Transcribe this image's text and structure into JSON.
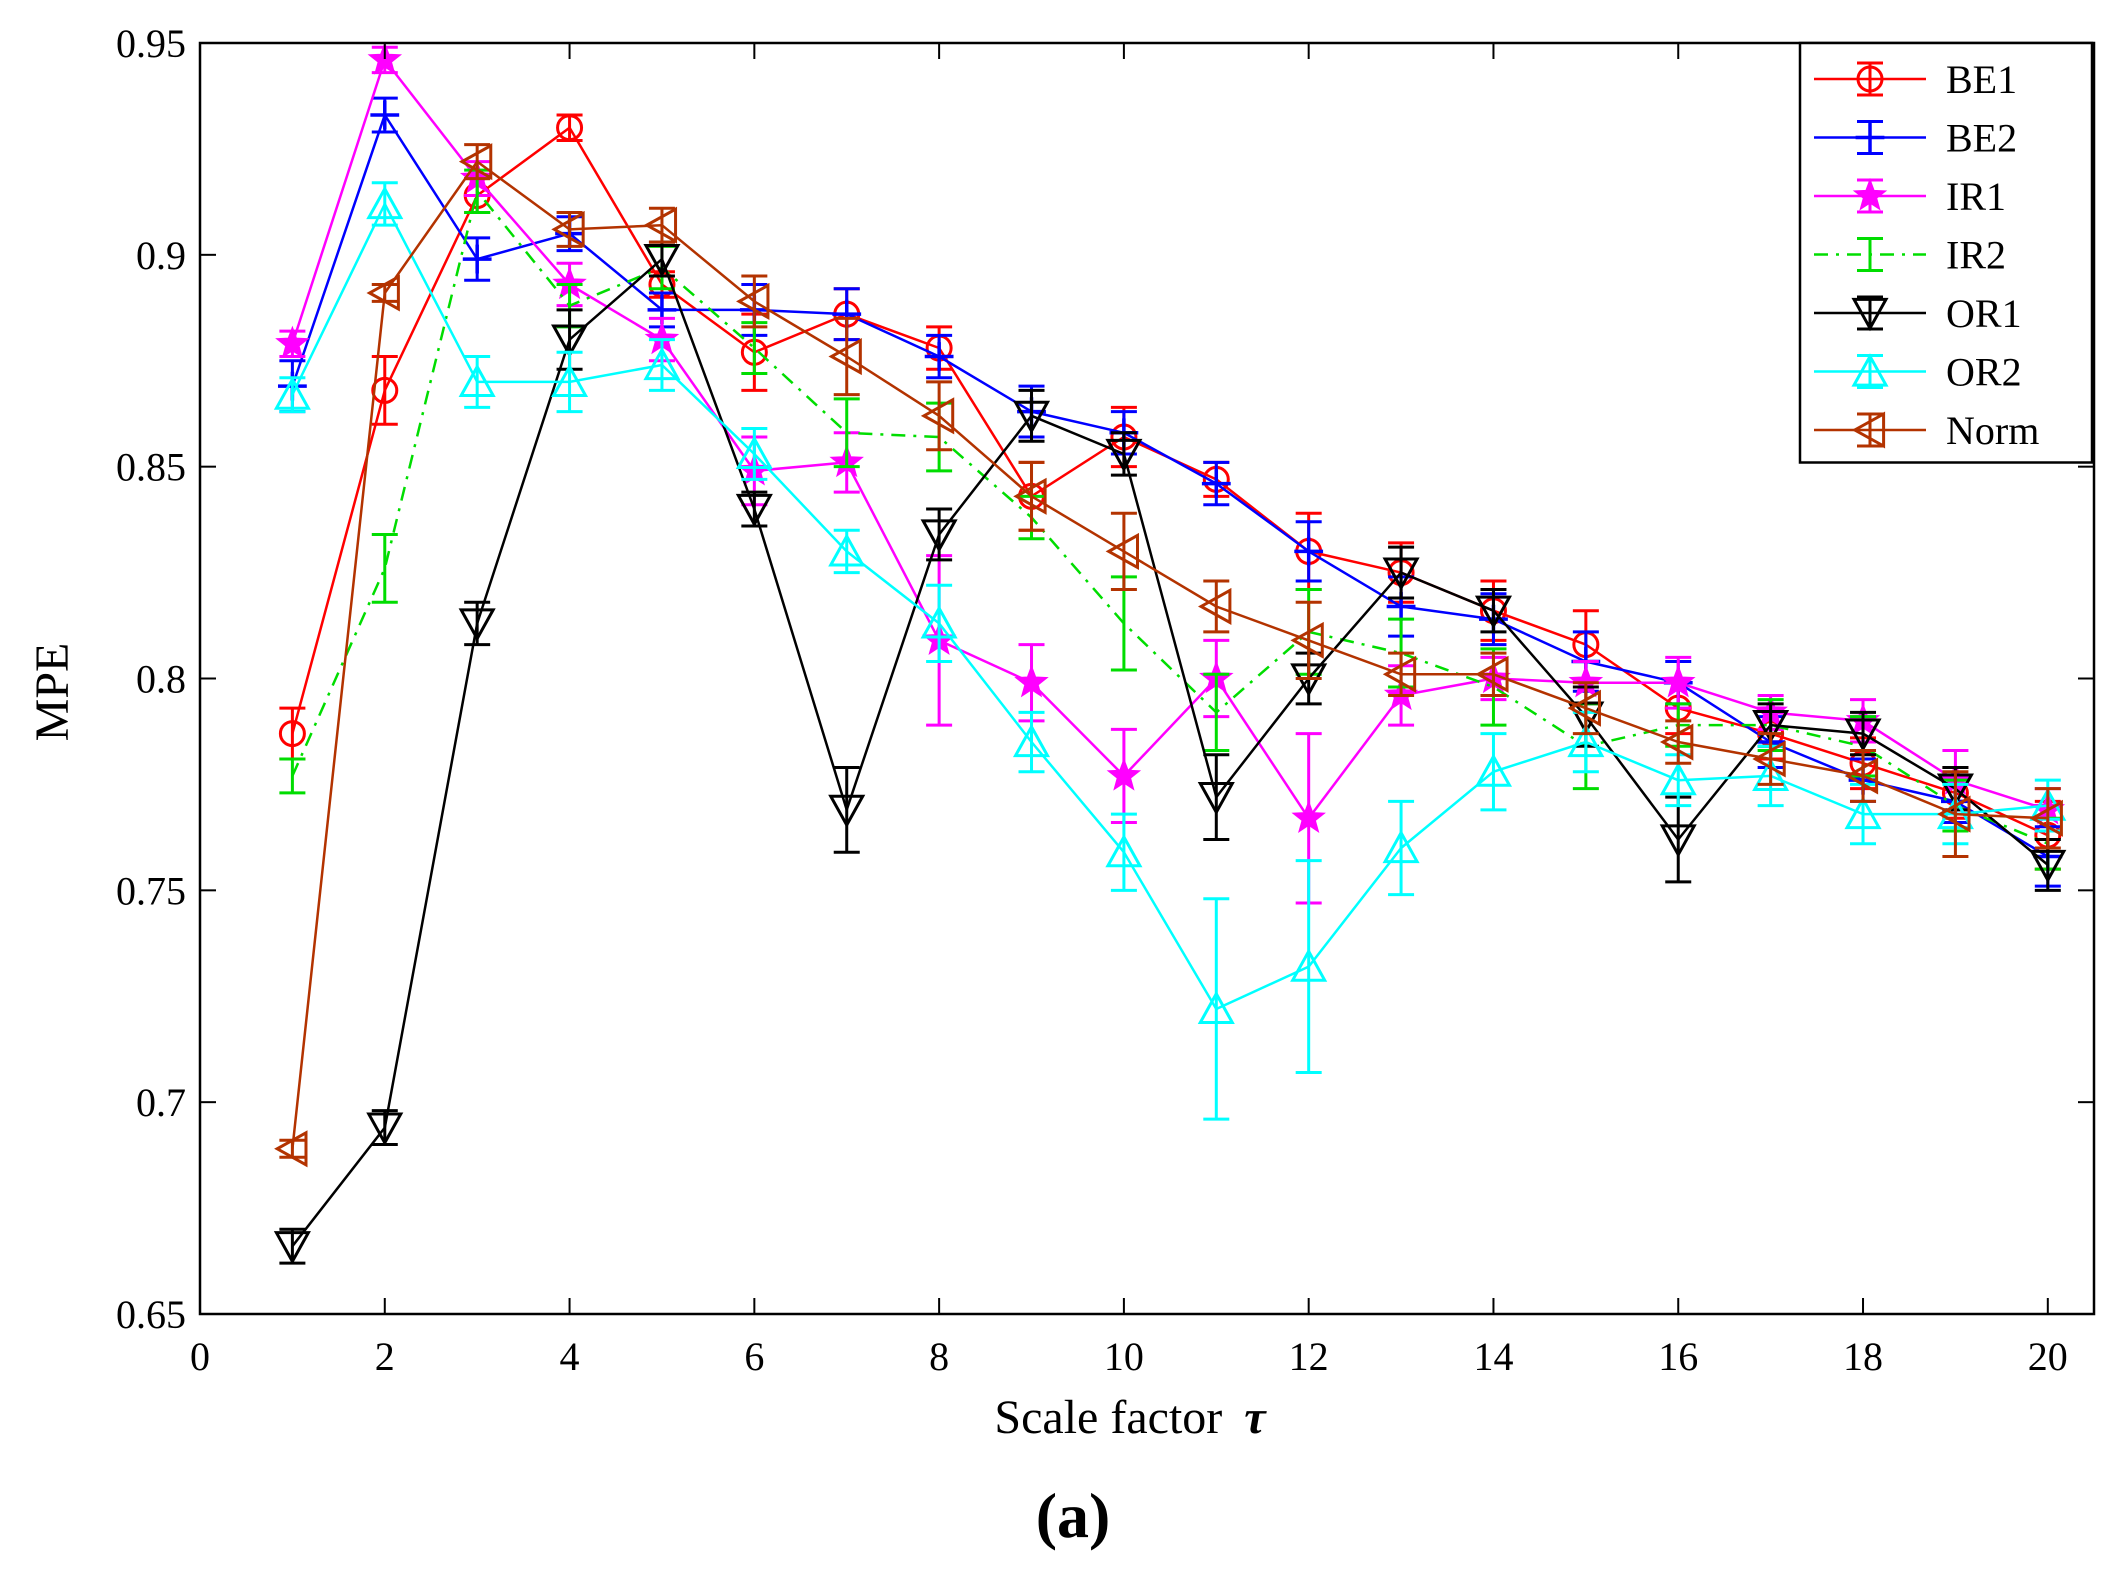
{
  "chart_data": {
    "type": "line",
    "title": "",
    "xlabel": "Scale factor",
    "xlabel_symbol": "τ",
    "ylabel": "MPE",
    "panel_label": "(a)",
    "xlim": [
      0,
      20.5
    ],
    "ylim": [
      0.65,
      0.95
    ],
    "xticks": [
      0,
      2,
      4,
      6,
      8,
      10,
      12,
      14,
      16,
      18,
      20
    ],
    "xtick_labels": [
      "0",
      "2",
      "4",
      "6",
      "8",
      "10",
      "12",
      "14",
      "16",
      "18",
      "20"
    ],
    "yticks": [
      0.65,
      0.7,
      0.75,
      0.8,
      0.85,
      0.9,
      0.95
    ],
    "ytick_labels": [
      "0.65",
      "0.7",
      "0.75",
      "0.8",
      "0.85",
      "0.9",
      "0.95"
    ],
    "legend_position": "top-right",
    "x": [
      1,
      2,
      3,
      4,
      5,
      6,
      7,
      8,
      9,
      10,
      11,
      12,
      13,
      14,
      15,
      16,
      17,
      18,
      19,
      20
    ],
    "series": [
      {
        "name": "BE1",
        "color": "#ff0000",
        "marker": "circle",
        "dash": "solid",
        "values": [
          0.787,
          0.868,
          0.914,
          0.93,
          0.893,
          0.877,
          0.886,
          0.878,
          0.843,
          0.857,
          0.847,
          0.83,
          0.825,
          0.816,
          0.808,
          0.793,
          0.787,
          0.78,
          0.773,
          0.763
        ],
        "errors": [
          0.006,
          0.008,
          0.004,
          0.003,
          0.003,
          0.009,
          0.006,
          0.005,
          0.008,
          0.007,
          0.004,
          0.009,
          0.007,
          0.007,
          0.008,
          0.006,
          0.006,
          0.006,
          0.006,
          0.008
        ]
      },
      {
        "name": "BE2",
        "color": "#0000ff",
        "marker": "plus",
        "dash": "solid",
        "values": [
          0.869,
          0.933,
          0.899,
          0.905,
          0.887,
          0.887,
          0.886,
          0.876,
          0.863,
          0.858,
          0.846,
          0.83,
          0.817,
          0.814,
          0.804,
          0.799,
          0.785,
          0.776,
          0.771,
          0.758
        ],
        "errors": [
          0.006,
          0.004,
          0.005,
          0.004,
          0.004,
          0.006,
          0.006,
          0.005,
          0.006,
          0.005,
          0.005,
          0.007,
          0.007,
          0.006,
          0.007,
          0.005,
          0.006,
          0.005,
          0.005,
          0.007
        ]
      },
      {
        "name": "IR1",
        "color": "#ff00ff",
        "marker": "star",
        "dash": "solid",
        "values": [
          0.879,
          0.946,
          0.918,
          0.893,
          0.88,
          0.849,
          0.851,
          0.809,
          0.799,
          0.777,
          0.8,
          0.767,
          0.796,
          0.8,
          0.799,
          0.799,
          0.792,
          0.79,
          0.776,
          0.769
        ],
        "errors": [
          0.003,
          0.003,
          0.004,
          0.005,
          0.005,
          0.008,
          0.007,
          0.02,
          0.009,
          0.011,
          0.009,
          0.02,
          0.007,
          0.005,
          0.005,
          0.006,
          0.004,
          0.005,
          0.007,
          0.005
        ]
      },
      {
        "name": "IR2",
        "color": "#00dd00",
        "marker": "bar",
        "dash": "dashdot",
        "values": [
          0.777,
          0.826,
          0.915,
          0.888,
          0.897,
          0.878,
          0.858,
          0.857,
          0.838,
          0.813,
          0.792,
          0.811,
          0.806,
          0.798,
          0.784,
          0.789,
          0.789,
          0.784,
          0.77,
          0.761
        ],
        "errors": [
          0.004,
          0.008,
          0.005,
          0.005,
          0.005,
          0.006,
          0.008,
          0.008,
          0.005,
          0.011,
          0.009,
          0.01,
          0.008,
          0.009,
          0.01,
          0.005,
          0.006,
          0.007,
          0.006,
          0.006
        ]
      },
      {
        "name": "OR1",
        "color": "#000000",
        "marker": "triangle-down",
        "dash": "solid",
        "values": [
          0.666,
          0.694,
          0.813,
          0.88,
          0.899,
          0.84,
          0.769,
          0.834,
          0.862,
          0.853,
          0.772,
          0.8,
          0.825,
          0.816,
          0.791,
          0.762,
          0.789,
          0.787,
          0.774,
          0.756
        ],
        "errors": [
          0.004,
          0.004,
          0.005,
          0.007,
          0.004,
          0.004,
          0.01,
          0.006,
          0.006,
          0.005,
          0.01,
          0.006,
          0.006,
          0.005,
          0.007,
          0.01,
          0.005,
          0.005,
          0.005,
          0.006
        ]
      },
      {
        "name": "OR2",
        "color": "#00ffff",
        "marker": "triangle-up",
        "dash": "solid",
        "values": [
          0.867,
          0.912,
          0.87,
          0.87,
          0.874,
          0.853,
          0.83,
          0.813,
          0.785,
          0.759,
          0.722,
          0.732,
          0.76,
          0.778,
          0.785,
          0.776,
          0.777,
          0.768,
          0.768,
          0.77
        ],
        "errors": [
          0.004,
          0.005,
          0.006,
          0.007,
          0.006,
          0.006,
          0.005,
          0.009,
          0.007,
          0.009,
          0.026,
          0.025,
          0.011,
          0.009,
          0.007,
          0.006,
          0.007,
          0.007,
          0.007,
          0.006
        ]
      },
      {
        "name": "Norm",
        "color": "#b33300",
        "marker": "triangle-left",
        "dash": "solid",
        "values": [
          0.689,
          0.891,
          0.922,
          0.906,
          0.907,
          0.889,
          0.876,
          0.862,
          0.843,
          0.83,
          0.817,
          0.809,
          0.801,
          0.801,
          0.793,
          0.785,
          0.781,
          0.777,
          0.768,
          0.767
        ],
        "errors": [
          0.002,
          0.002,
          0.004,
          0.004,
          0.004,
          0.006,
          0.009,
          0.008,
          0.008,
          0.009,
          0.006,
          0.009,
          0.005,
          0.005,
          0.006,
          0.005,
          0.006,
          0.006,
          0.01,
          0.007
        ]
      }
    ]
  }
}
